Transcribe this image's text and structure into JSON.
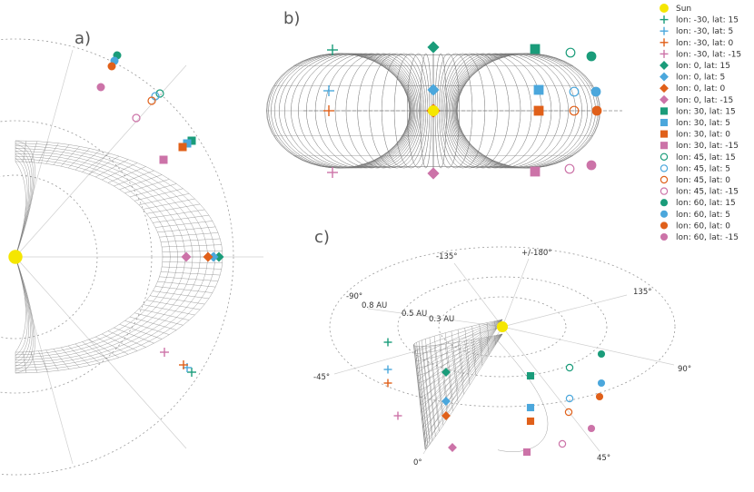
{
  "panels": {
    "a": "a)",
    "b": "b)",
    "c": "c)"
  },
  "polar_labels": {
    "angles": [
      "-135°",
      "+/-180°",
      "135°",
      "-90°",
      "90°",
      "-45°",
      "45°",
      "0°"
    ],
    "radii": [
      "0.8 AU",
      "0.5 AU",
      "0.3 AU"
    ]
  },
  "legend": [
    {
      "label": "Sun",
      "marker": "sun",
      "color": "#f5e600"
    },
    {
      "label": "lon: -30, lat: 15",
      "marker": "plus",
      "color": "#1a9c7a"
    },
    {
      "label": "lon: -30, lat: 5",
      "marker": "plus",
      "color": "#4ba7dc"
    },
    {
      "label": "lon: -30, lat: 0",
      "marker": "plus",
      "color": "#e0601a"
    },
    {
      "label": "lon: -30, lat: -15",
      "marker": "plus",
      "color": "#cc73a8"
    },
    {
      "label": "lon: 0, lat: 15",
      "marker": "diamond",
      "color": "#1a9c7a"
    },
    {
      "label": "lon: 0, lat: 5",
      "marker": "diamond",
      "color": "#4ba7dc"
    },
    {
      "label": "lon: 0, lat: 0",
      "marker": "diamond",
      "color": "#e0601a"
    },
    {
      "label": "lon: 0, lat: -15",
      "marker": "diamond",
      "color": "#cc73a8"
    },
    {
      "label": "lon: 30, lat: 15",
      "marker": "square",
      "color": "#1a9c7a"
    },
    {
      "label": "lon: 30, lat: 5",
      "marker": "square",
      "color": "#4ba7dc"
    },
    {
      "label": "lon: 30, lat: 0",
      "marker": "square",
      "color": "#e0601a"
    },
    {
      "label": "lon: 30, lat: -15",
      "marker": "square",
      "color": "#cc73a8"
    },
    {
      "label": "lon: 45, lat: 15",
      "marker": "ring",
      "color": "#1a9c7a"
    },
    {
      "label": "lon: 45, lat: 5",
      "marker": "ring",
      "color": "#4ba7dc"
    },
    {
      "label": "lon: 45, lat: 0",
      "marker": "ring",
      "color": "#e0601a"
    },
    {
      "label": "lon: 45, lat: -15",
      "marker": "ring",
      "color": "#cc73a8"
    },
    {
      "label": "lon: 60, lat: 15",
      "marker": "dot",
      "color": "#1a9c7a"
    },
    {
      "label": "lon: 60, lat: 5",
      "marker": "dot",
      "color": "#4ba7dc"
    },
    {
      "label": "lon: 60, lat: 0",
      "marker": "dot",
      "color": "#e0601a"
    },
    {
      "label": "lon: 60, lat: -15",
      "marker": "dot",
      "color": "#cc73a8"
    }
  ]
}
